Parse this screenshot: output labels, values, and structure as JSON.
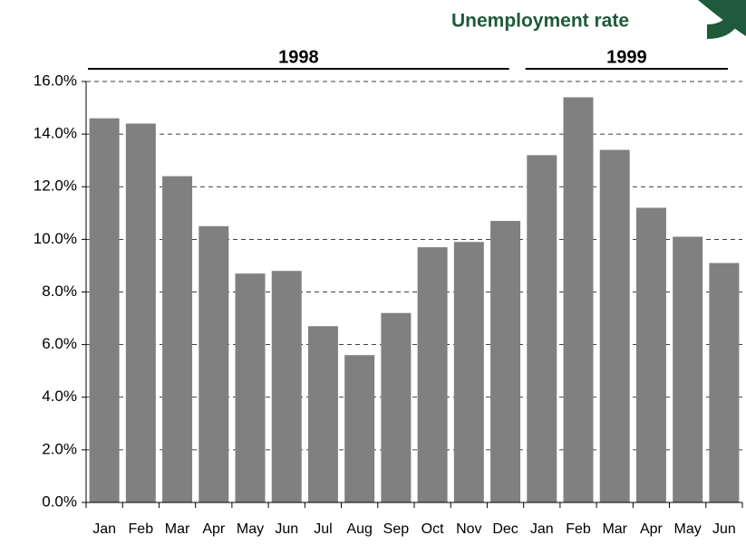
{
  "chart_data": {
    "type": "bar",
    "title": "Unemployment rate",
    "groups": [
      {
        "label": "1998",
        "size": 12
      },
      {
        "label": "1999",
        "size": 6
      }
    ],
    "categories": [
      "Jan",
      "Feb",
      "Mar",
      "Apr",
      "May",
      "Jun",
      "Jul",
      "Aug",
      "Sep",
      "Oct",
      "Nov",
      "Dec",
      "Jan",
      "Feb",
      "Mar",
      "Apr",
      "May",
      "Jun"
    ],
    "values": [
      14.6,
      14.4,
      12.4,
      10.5,
      8.7,
      8.8,
      6.7,
      5.6,
      7.2,
      9.7,
      9.9,
      10.7,
      13.2,
      15.4,
      13.4,
      11.2,
      10.1,
      9.1
    ],
    "color": "#808080",
    "ylim": [
      0,
      16
    ],
    "yticks": [
      {
        "value": 0,
        "label": "0.0%"
      },
      {
        "value": 2,
        "label": "2.0%"
      },
      {
        "value": 4,
        "label": "4.0%"
      },
      {
        "value": 6,
        "label": "6.0%"
      },
      {
        "value": 8,
        "label": "8.0%"
      },
      {
        "value": 10,
        "label": "10.0%"
      },
      {
        "value": 12,
        "label": "12.0%"
      },
      {
        "value": 14,
        "label": "14.0%"
      },
      {
        "value": 16,
        "label": "16.0%"
      }
    ],
    "grid": true
  }
}
